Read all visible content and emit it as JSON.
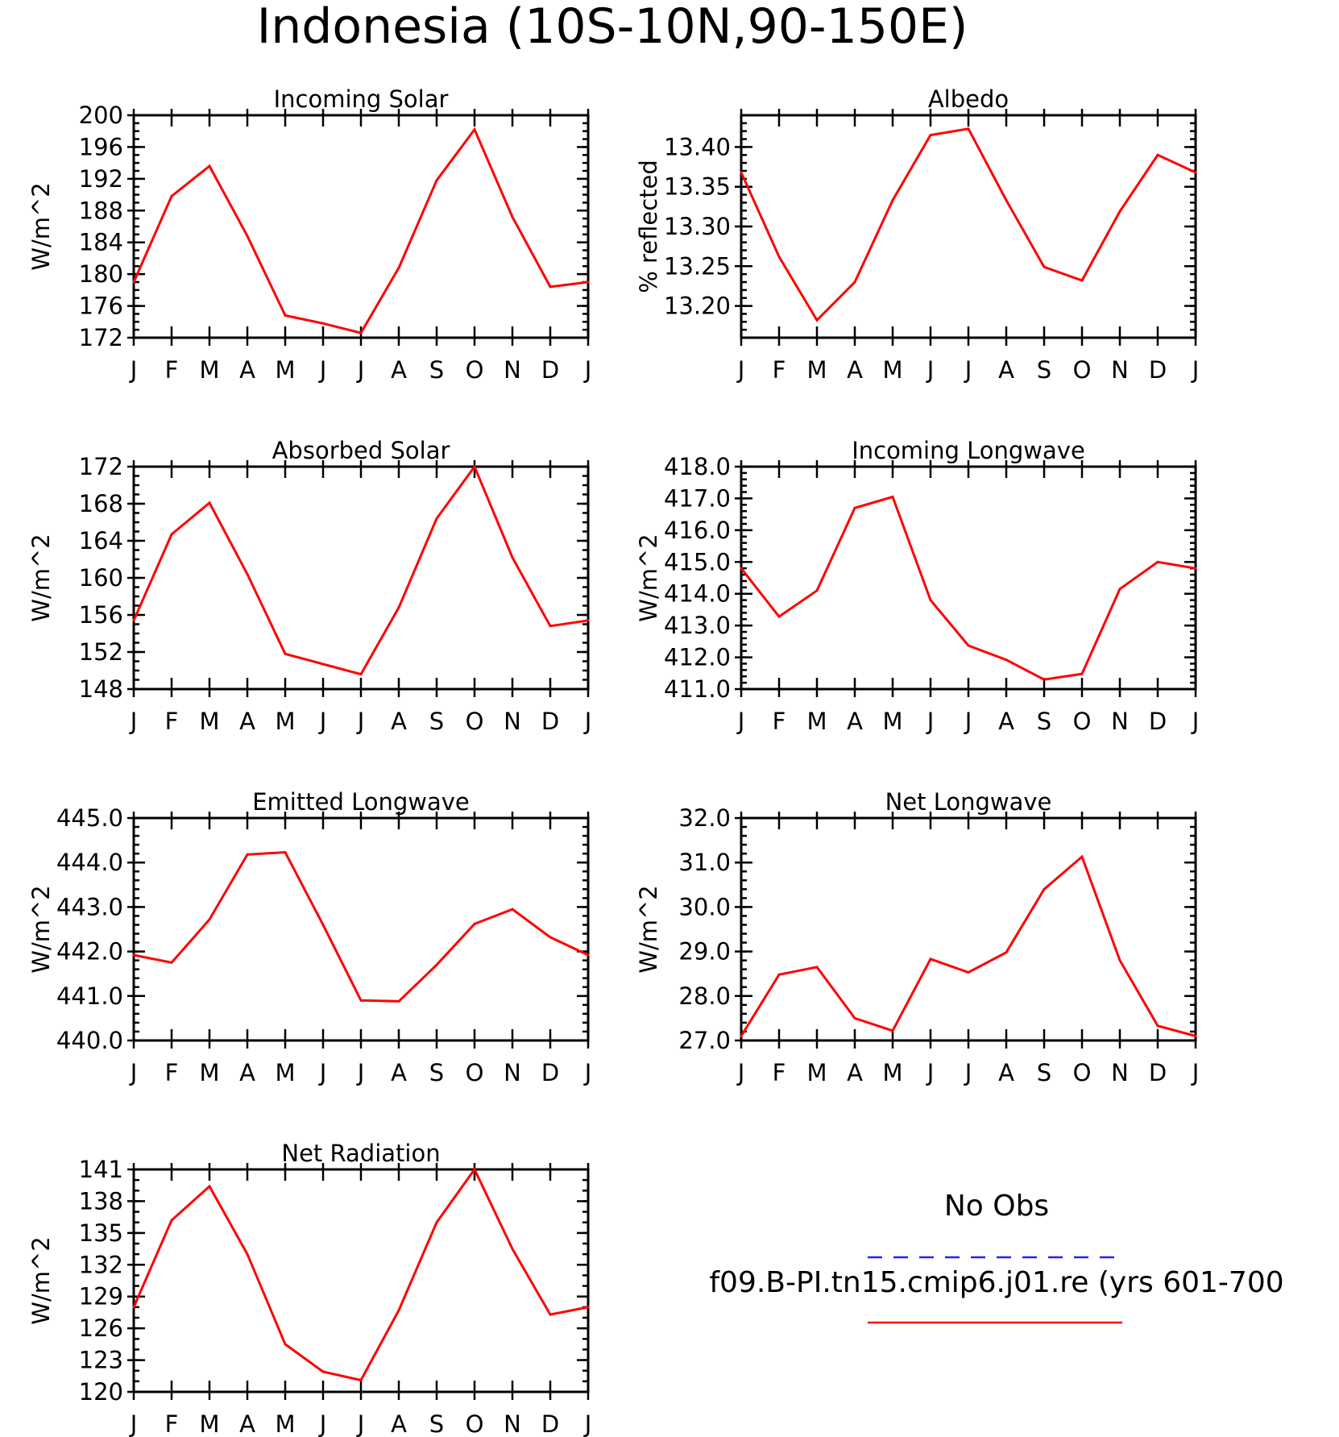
{
  "title": "Indonesia (10S-10N,90-150E)",
  "legend": {
    "entries": [
      {
        "label": "No Obs",
        "color": "#2222ff",
        "style": "dashed"
      },
      {
        "label": "f09.B-PI.tn15.cmip6.j01.re (yrs 601-700",
        "color": "#ff0000",
        "style": "solid"
      }
    ]
  },
  "chart_data": [
    {
      "type": "line",
      "title": "Incoming Solar",
      "ylabel": "W/m^2",
      "x": [
        "J",
        "F",
        "M",
        "A",
        "M",
        "J",
        "J",
        "A",
        "S",
        "O",
        "N",
        "D",
        "J"
      ],
      "ylim": [
        172,
        200
      ],
      "yticks": [
        172,
        176,
        180,
        184,
        188,
        192,
        196,
        200
      ],
      "yminor": 1,
      "decimals": 0,
      "series": [
        {
          "values": [
            179.0,
            189.8,
            193.6,
            184.8,
            174.8,
            173.8,
            172.6,
            180.8,
            191.8,
            198.2,
            187.2,
            178.4,
            179.0
          ],
          "color": "#ff0000"
        }
      ]
    },
    {
      "type": "line",
      "title": "Albedo",
      "ylabel": "% reflected",
      "x": [
        "J",
        "F",
        "M",
        "A",
        "M",
        "J",
        "J",
        "A",
        "S",
        "O",
        "N",
        "D",
        "J"
      ],
      "ylim": [
        13.16,
        13.44
      ],
      "yticks": [
        13.2,
        13.25,
        13.3,
        13.35,
        13.4
      ],
      "yminor": 0.01,
      "decimals": 2,
      "series": [
        {
          "values": [
            13.368,
            13.262,
            13.182,
            13.23,
            13.333,
            13.415,
            13.423,
            13.333,
            13.249,
            13.232,
            13.319,
            13.39,
            13.368
          ],
          "color": "#ff0000"
        }
      ]
    },
    {
      "type": "line",
      "title": "Absorbed Solar",
      "ylabel": "W/m^2",
      "x": [
        "J",
        "F",
        "M",
        "A",
        "M",
        "J",
        "J",
        "A",
        "S",
        "O",
        "N",
        "D",
        "J"
      ],
      "ylim": [
        148,
        172
      ],
      "yticks": [
        148,
        152,
        156,
        160,
        164,
        168,
        172
      ],
      "yminor": 1,
      "decimals": 0,
      "series": [
        {
          "values": [
            155.4,
            164.7,
            168.1,
            160.4,
            151.8,
            150.7,
            149.6,
            156.8,
            166.4,
            172.0,
            162.2,
            154.8,
            155.4
          ],
          "color": "#ff0000"
        }
      ]
    },
    {
      "type": "line",
      "title": "Incoming Longwave",
      "ylabel": "W/m^2",
      "x": [
        "J",
        "F",
        "M",
        "A",
        "M",
        "J",
        "J",
        "A",
        "S",
        "O",
        "N",
        "D",
        "J"
      ],
      "ylim": [
        411,
        418
      ],
      "yticks": [
        411,
        412,
        413,
        414,
        415,
        416,
        417,
        418
      ],
      "yminor": 0.2,
      "decimals": 1,
      "series": [
        {
          "values": [
            414.8,
            413.28,
            414.1,
            416.7,
            417.05,
            413.8,
            412.37,
            411.92,
            411.3,
            411.48,
            414.15,
            415.0,
            414.8
          ],
          "color": "#ff0000"
        }
      ]
    },
    {
      "type": "line",
      "title": "Emitted Longwave",
      "ylabel": "W/m^2",
      "x": [
        "J",
        "F",
        "M",
        "A",
        "M",
        "J",
        "J",
        "A",
        "S",
        "O",
        "N",
        "D",
        "J"
      ],
      "ylim": [
        440,
        445
      ],
      "yticks": [
        440,
        441,
        442,
        443,
        444,
        445
      ],
      "yminor": 0.2,
      "decimals": 1,
      "series": [
        {
          "values": [
            441.92,
            441.75,
            442.72,
            444.18,
            444.23,
            442.6,
            440.9,
            440.88,
            441.7,
            442.62,
            442.95,
            442.32,
            441.92
          ],
          "color": "#ff0000"
        }
      ]
    },
    {
      "type": "line",
      "title": "Net Longwave",
      "ylabel": "W/m^2",
      "x": [
        "J",
        "F",
        "M",
        "A",
        "M",
        "J",
        "J",
        "A",
        "S",
        "O",
        "N",
        "D",
        "J"
      ],
      "ylim": [
        27,
        32
      ],
      "yticks": [
        27,
        28,
        29,
        30,
        31,
        32
      ],
      "yminor": 0.2,
      "decimals": 1,
      "series": [
        {
          "values": [
            27.1,
            28.48,
            28.65,
            27.5,
            27.22,
            28.83,
            28.53,
            28.98,
            30.4,
            31.13,
            28.8,
            27.33,
            27.1
          ],
          "color": "#ff0000"
        }
      ]
    },
    {
      "type": "line",
      "title": "Net Radiation",
      "ylabel": "W/m^2",
      "x": [
        "J",
        "F",
        "M",
        "A",
        "M",
        "J",
        "J",
        "A",
        "S",
        "O",
        "N",
        "D",
        "J"
      ],
      "ylim": [
        120,
        141
      ],
      "yticks": [
        120,
        123,
        126,
        129,
        132,
        135,
        138,
        141
      ],
      "yminor": 1,
      "decimals": 0,
      "series": [
        {
          "values": [
            128.0,
            136.2,
            139.4,
            133.0,
            124.5,
            121.9,
            121.1,
            127.7,
            136.0,
            141.0,
            133.5,
            127.3,
            128.0
          ],
          "color": "#ff0000"
        }
      ]
    }
  ]
}
